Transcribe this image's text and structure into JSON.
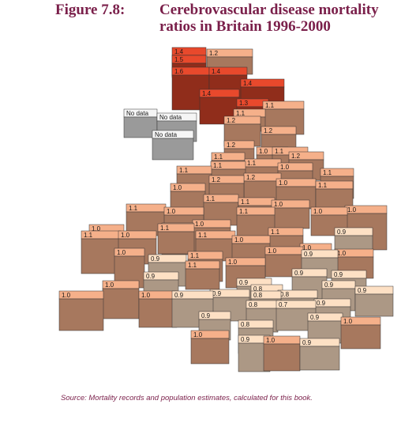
{
  "figure": {
    "number": "Figure 7.8:",
    "title": "Cerebrovascular disease mortality ratios in Britain 1996-2000"
  },
  "source": "Source: Mortality records and population estimates, calculated for this book.",
  "map_cells": [
    {
      "label": "1.4",
      "band": "high"
    },
    {
      "label": "1.2",
      "band": "mid"
    },
    {
      "label": "1.5",
      "band": "high"
    },
    {
      "label": "1.6",
      "band": "high"
    },
    {
      "label": "1.4",
      "band": "high"
    },
    {
      "label": "1.4",
      "band": "high"
    },
    {
      "label": "1.4",
      "band": "high"
    },
    {
      "label": "1.3",
      "band": "high"
    },
    {
      "label": "1.1",
      "band": "mid"
    },
    {
      "label": "1.1",
      "band": "mid"
    },
    {
      "label": "No data",
      "band": "nodata"
    },
    {
      "label": "No data",
      "band": "nodata"
    },
    {
      "label": "No data",
      "band": "nodata"
    },
    {
      "label": "1.2",
      "band": "mid"
    },
    {
      "label": "1.2",
      "band": "mid"
    },
    {
      "label": "1.2",
      "band": "mid"
    },
    {
      "label": "1.1",
      "band": "mid"
    },
    {
      "label": "1.1",
      "band": "mid"
    },
    {
      "label": "1.0",
      "band": "mid"
    },
    {
      "label": "1.2",
      "band": "mid"
    },
    {
      "label": "1.1",
      "band": "mid"
    },
    {
      "label": "1.1",
      "band": "mid"
    },
    {
      "label": "1.0",
      "band": "mid"
    },
    {
      "label": "1.1",
      "band": "mid"
    },
    {
      "label": "1.1",
      "band": "mid"
    },
    {
      "label": "1.2",
      "band": "mid"
    },
    {
      "label": "1.2",
      "band": "mid"
    },
    {
      "label": "1.0",
      "band": "mid"
    },
    {
      "label": "1.1",
      "band": "mid"
    },
    {
      "label": "1.0",
      "band": "mid"
    },
    {
      "label": "1.1",
      "band": "mid"
    },
    {
      "label": "1.1",
      "band": "mid"
    },
    {
      "label": "1.0",
      "band": "mid"
    },
    {
      "label": "1.0",
      "band": "mid"
    },
    {
      "label": "1.1",
      "band": "mid"
    },
    {
      "label": "1.0",
      "band": "mid"
    },
    {
      "label": "1.1",
      "band": "mid"
    },
    {
      "label": "1.0",
      "band": "mid"
    },
    {
      "label": "1.0",
      "band": "mid"
    },
    {
      "label": "1.1",
      "band": "mid"
    },
    {
      "label": "1.0",
      "band": "mid"
    },
    {
      "label": "1.1",
      "band": "mid"
    },
    {
      "label": "1.0",
      "band": "mid"
    },
    {
      "label": "1.1",
      "band": "mid"
    },
    {
      "label": "1.0",
      "band": "mid"
    },
    {
      "label": "1.1",
      "band": "mid"
    },
    {
      "label": "1.1",
      "band": "mid"
    },
    {
      "label": "1.0",
      "band": "mid"
    },
    {
      "label": "1.0",
      "band": "mid"
    },
    {
      "label": "0.9",
      "band": "low"
    },
    {
      "label": "1.1",
      "band": "mid"
    },
    {
      "label": "1.0",
      "band": "mid"
    },
    {
      "label": "0.9",
      "band": "low"
    },
    {
      "label": "1.1",
      "band": "mid"
    },
    {
      "label": "1.0",
      "band": "mid"
    },
    {
      "label": "0.9",
      "band": "low"
    },
    {
      "label": "1.0",
      "band": "mid"
    },
    {
      "label": "0.9",
      "band": "low"
    },
    {
      "label": "1.0",
      "band": "mid"
    },
    {
      "label": "0.9",
      "band": "low"
    },
    {
      "label": "0.8",
      "band": "low"
    },
    {
      "label": "0.9",
      "band": "low"
    },
    {
      "label": "0.9",
      "band": "low"
    },
    {
      "label": "0.9",
      "band": "low"
    },
    {
      "label": "1.0",
      "band": "mid"
    },
    {
      "label": "1.0",
      "band": "mid"
    },
    {
      "label": "0.9",
      "band": "low"
    },
    {
      "label": "0.9",
      "band": "low"
    },
    {
      "label": "0.9",
      "band": "low"
    },
    {
      "label": "0.8",
      "band": "low"
    },
    {
      "label": "0.8",
      "band": "low"
    },
    {
      "label": "0.9",
      "band": "low"
    },
    {
      "label": "0.8",
      "band": "low"
    },
    {
      "label": "0.7",
      "band": "low"
    },
    {
      "label": "0.9",
      "band": "low"
    },
    {
      "label": "0.8",
      "band": "low"
    },
    {
      "label": "0.9",
      "band": "low"
    },
    {
      "label": "1.0",
      "band": "mid"
    },
    {
      "label": "1.0",
      "band": "mid"
    },
    {
      "label": "0.9",
      "band": "low"
    },
    {
      "label": "1.0",
      "band": "mid"
    },
    {
      "label": "0.9",
      "band": "low"
    }
  ],
  "colors": {
    "high": "#e8492c",
    "mid": "#f5b08a",
    "low": "#fde0c4",
    "lowest": "#fdf2e0",
    "nodata": "#ffffff",
    "title": "#7a1f4a"
  }
}
